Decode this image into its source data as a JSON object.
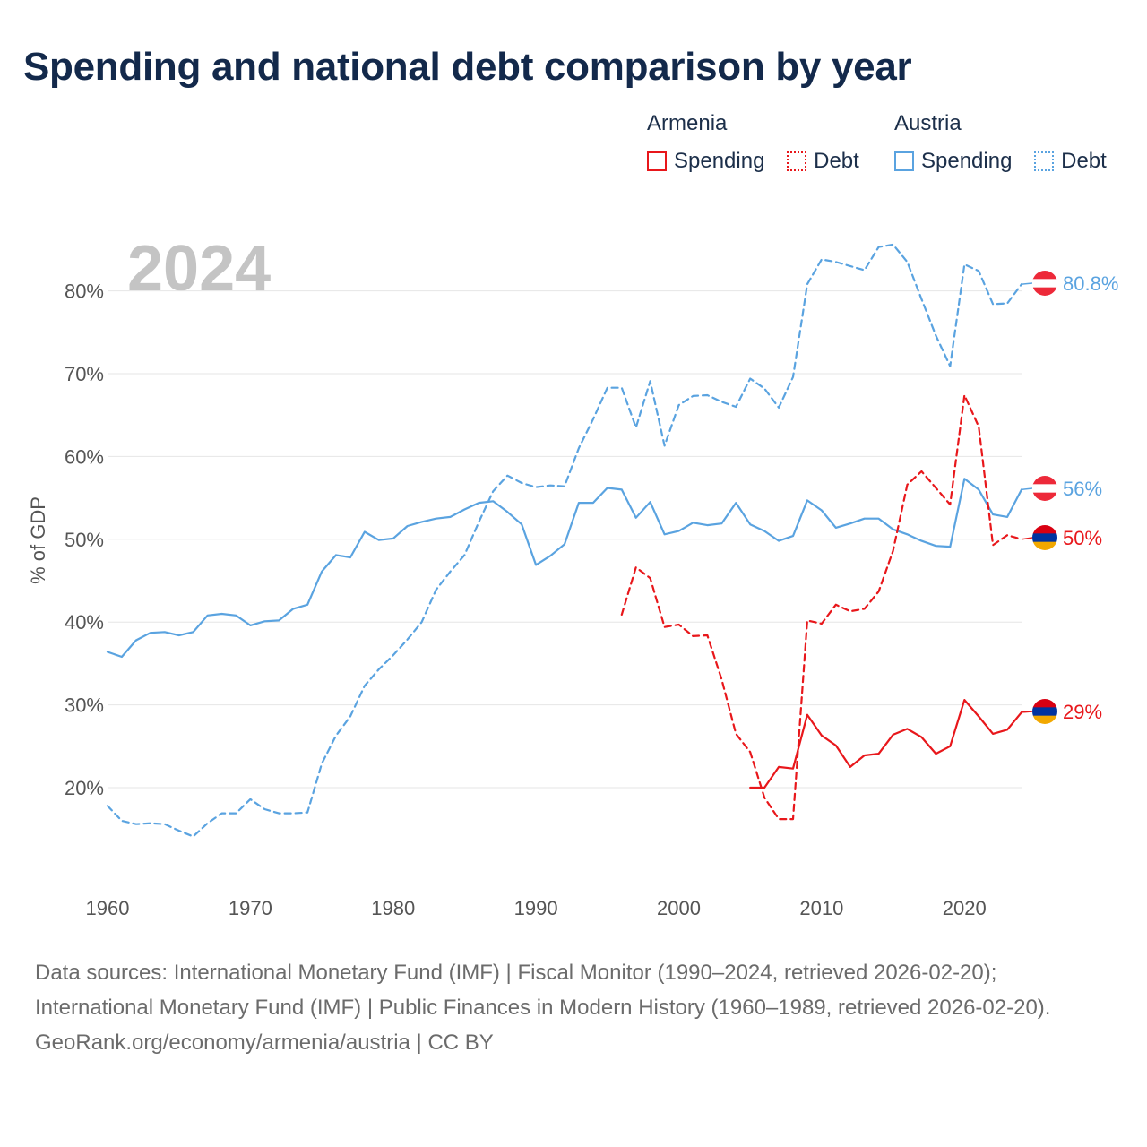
{
  "title": "Spending and national debt comparison by year",
  "year_label": "2024",
  "legend": {
    "groups": [
      {
        "name": "Armenia",
        "color": "#e8171b",
        "items": [
          {
            "label": "Spending",
            "style": "solid"
          },
          {
            "label": "Debt",
            "style": "dotted"
          }
        ]
      },
      {
        "name": "Austria",
        "color": "#5aa3e0",
        "items": [
          {
            "label": "Spending",
            "style": "solid"
          },
          {
            "label": "Debt",
            "style": "dotted"
          }
        ]
      }
    ]
  },
  "footer": {
    "sources": "Data sources: International Monetary Fund (IMF) | Fiscal Monitor (1990–2024, retrieved 2026-02-20); International Monetary Fund (IMF) | Public Finances in Modern History (1960–1989, retrieved 2026-02-20).",
    "credit": "GeoRank.org/economy/armenia/austria | CC BY"
  },
  "chart_data": {
    "type": "line",
    "title": "Spending and national debt comparison by year",
    "xlabel": "",
    "ylabel": "% of GDP",
    "xlim": [
      1960,
      2024
    ],
    "ylim": [
      9,
      88
    ],
    "x_ticks": [
      1960,
      1970,
      1980,
      1990,
      2000,
      2010,
      2020
    ],
    "y_ticks": [
      20,
      30,
      40,
      50,
      60,
      70,
      80
    ],
    "y_tick_labels": [
      "20%",
      "30%",
      "40%",
      "50%",
      "60%",
      "70%",
      "80%"
    ],
    "grid": true,
    "series": [
      {
        "name": "Austria Debt",
        "country": "Austria",
        "flag": "austria",
        "color": "#5aa3e0",
        "dashed": true,
        "end_label": "80.8%",
        "start_year": 1960,
        "values": [
          17.8,
          16.0,
          15.6,
          15.7,
          15.6,
          14.8,
          14.1,
          15.7,
          16.9,
          16.9,
          18.6,
          17.4,
          16.9,
          16.9,
          17.0,
          22.9,
          26.3,
          28.6,
          32.3,
          34.3,
          36.0,
          37.9,
          40.0,
          43.9,
          46.1,
          48.1,
          52.1,
          55.8,
          57.7,
          56.8,
          56.3,
          56.5,
          56.4,
          61.0,
          64.5,
          68.3,
          68.3,
          63.5,
          69.1,
          61.3,
          66.2,
          67.3,
          67.4,
          66.6,
          66.0,
          69.4,
          68.2,
          65.9,
          69.6,
          80.8,
          83.8,
          83.5,
          83.0,
          82.5,
          85.3,
          85.6,
          83.5,
          79.0,
          74.6,
          70.9,
          83.2,
          82.4,
          78.4,
          78.5,
          80.8
        ]
      },
      {
        "name": "Austria Spending",
        "country": "Austria",
        "flag": "austria",
        "color": "#5aa3e0",
        "dashed": false,
        "end_label": "56%",
        "start_year": 1960,
        "values": [
          36.4,
          35.8,
          37.8,
          38.7,
          38.8,
          38.4,
          38.8,
          40.8,
          41.0,
          40.8,
          39.6,
          40.1,
          40.2,
          41.6,
          42.1,
          46.1,
          48.1,
          47.8,
          50.9,
          49.9,
          50.1,
          51.6,
          52.1,
          52.5,
          52.7,
          53.6,
          54.4,
          54.6,
          53.3,
          51.8,
          46.9,
          48.0,
          49.4,
          54.4,
          54.4,
          56.2,
          56.0,
          52.6,
          54.5,
          50.6,
          51.0,
          52.0,
          51.7,
          51.9,
          54.4,
          51.8,
          51.0,
          49.8,
          50.4,
          54.7,
          53.5,
          51.4,
          51.9,
          52.5,
          52.5,
          51.2,
          50.6,
          49.8,
          49.2,
          49.1,
          57.3,
          56.0,
          53.0,
          52.7,
          56.0
        ]
      },
      {
        "name": "Armenia Debt",
        "country": "Armenia",
        "flag": "armenia",
        "color": "#e8171b",
        "dashed": true,
        "end_label": "50%",
        "start_year": 1996,
        "values": [
          40.9,
          46.6,
          45.3,
          39.4,
          39.7,
          38.3,
          38.4,
          33.1,
          26.5,
          24.3,
          18.8,
          16.2,
          16.2,
          40.2,
          39.8,
          42.1,
          41.3,
          41.6,
          43.7,
          48.6,
          56.6,
          58.2,
          56.2,
          54.2,
          67.4,
          63.6,
          49.3,
          50.5,
          50.0
        ]
      },
      {
        "name": "Armenia Spending",
        "country": "Armenia",
        "flag": "armenia",
        "color": "#e8171b",
        "dashed": false,
        "end_label": "29%",
        "start_year": 2005,
        "values": [
          20.0,
          20.0,
          22.5,
          22.3,
          28.8,
          26.3,
          25.1,
          22.5,
          23.9,
          24.1,
          26.4,
          27.1,
          26.1,
          24.1,
          25.0,
          30.6,
          28.6,
          26.5,
          27.0,
          29.1
        ]
      }
    ]
  }
}
